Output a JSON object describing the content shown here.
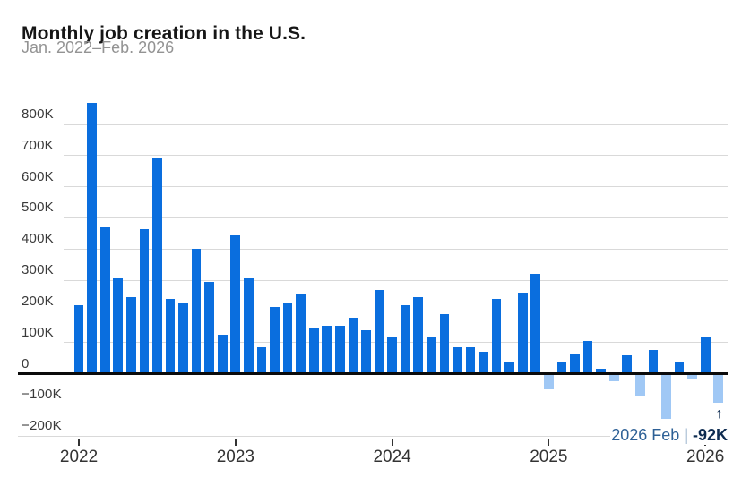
{
  "header": {
    "title": "Monthly job creation in the U.S.",
    "subtitle": "Jan. 2022–Feb. 2026"
  },
  "annotation": {
    "label": "2026 Feb |",
    "value": "-92K",
    "arrow": "↑"
  },
  "colors": {
    "positive_bar": "#0a6ede",
    "negative_bar": "#a0c8f5",
    "gridline": "#d9d9d9",
    "zero_line": "#0b0b0b",
    "annotation_label": "#2d6096",
    "annotation_value": "#0e2c51",
    "axis_text": "#3a3a3a",
    "year_text": "#333333"
  },
  "chart_data": {
    "type": "bar",
    "title": "Monthly job creation in the U.S.",
    "subtitle": "Jan. 2022–Feb. 2026",
    "unit": "jobs, thousands (K)",
    "grid": true,
    "legend": false,
    "ylim": [
      -250,
      900
    ],
    "ytick_values": [
      800,
      700,
      600,
      500,
      400,
      300,
      200,
      100,
      0,
      -100,
      -200
    ],
    "ytick_labels": [
      "800K",
      "700K",
      "600K",
      "500K",
      "400K",
      "300K",
      "200K",
      "100K",
      "0",
      "−100K",
      "−200K"
    ],
    "xtick_labels": [
      "2022",
      "2023",
      "2024",
      "2025",
      "2026"
    ],
    "series": [
      {
        "year": "2022",
        "values": [
          220,
          870,
          470,
          305,
          245,
          465,
          695,
          240,
          225,
          400,
          295,
          125
        ]
      },
      {
        "year": "2023",
        "values": [
          445,
          305,
          85,
          215,
          225,
          255,
          145,
          155,
          155,
          180,
          140,
          270
        ]
      },
      {
        "year": "2024",
        "values": [
          115,
          220,
          245,
          115,
          190,
          85,
          85,
          70,
          240,
          40,
          260,
          320
        ]
      },
      {
        "year": "2025",
        "values": [
          -50,
          40,
          65,
          105,
          15,
          -25,
          60,
          -70,
          75,
          -145,
          40,
          -20
        ]
      },
      {
        "year": "2026",
        "values": [
          120,
          -92
        ]
      }
    ],
    "highlight": {
      "month": "2026 Feb",
      "value_label": "-92K"
    }
  }
}
